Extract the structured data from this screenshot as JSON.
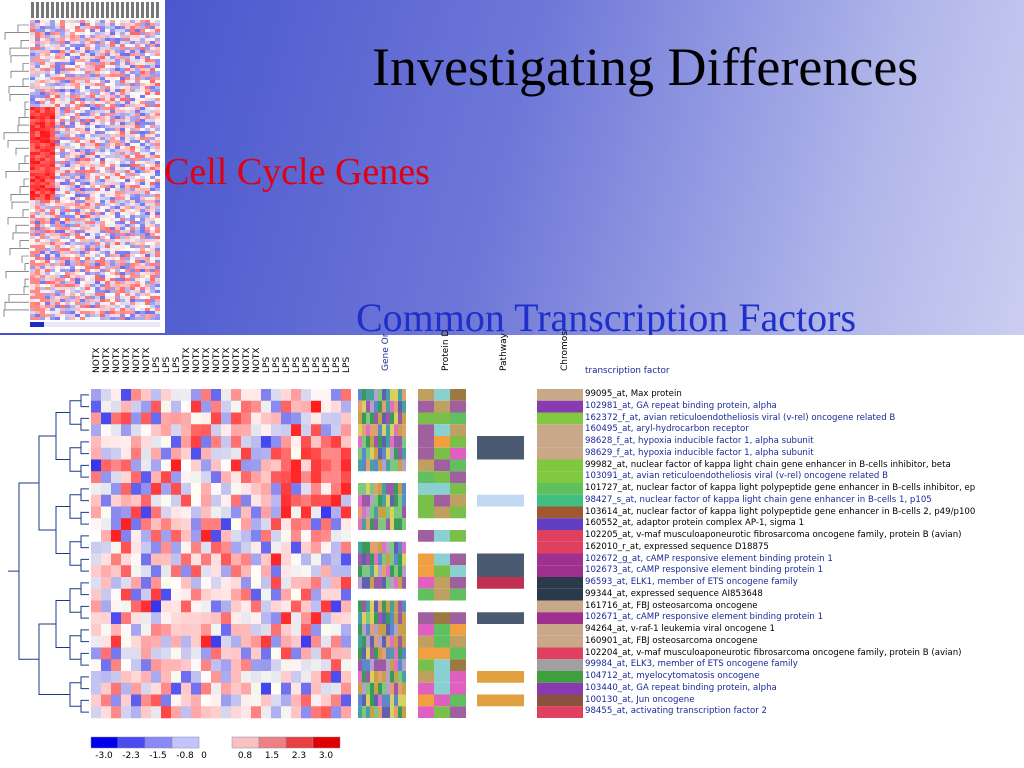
{
  "slide": {
    "title": "Investigating Differences",
    "cell_cycle_label": "Cell Cycle Genes",
    "tf_label": "Common Transcription Factors"
  },
  "heatmap": {
    "conditions": [
      "NOTX",
      "NOTX",
      "NOTX",
      "NOTX",
      "NOTX",
      "NOTX",
      "LPS",
      "LPS",
      "LPS",
      "NOTX",
      "NOTX",
      "NOTX",
      "NOTX",
      "NOTX",
      "NOTX",
      "NOTX",
      "NOTX",
      "LPS",
      "LPS",
      "LPS",
      "LPS",
      "LPS",
      "LPS",
      "LPS",
      "LPS",
      "LPS"
    ],
    "annotation_headers": [
      "Gene Or",
      "Protein D",
      "Pathway",
      "Chromos"
    ],
    "label_header": "transcription factor",
    "legend": {
      "values": [
        "-3.0",
        "-2.3",
        "-1.5",
        "-0.8",
        "0",
        "0.8",
        "1.5",
        "2.3",
        "3.0"
      ],
      "colors": [
        "#0000ee",
        "#4a4af0",
        "#8a8af6",
        "#c4c4fb",
        "#ffffff",
        "#f9c0c0",
        "#f08080",
        "#e84040",
        "#e00000"
      ]
    },
    "genes": [
      {
        "label": "99095_at, Max protein",
        "highlight": false
      },
      {
        "label": "102981_at, GA repeat binding protein, alpha",
        "highlight": true
      },
      {
        "label": "162372_f_at, avian reticuloendotheliosis viral (v-rel) oncogene related B",
        "highlight": true
      },
      {
        "label": "160495_at, aryl-hydrocarbon receptor",
        "highlight": true
      },
      {
        "label": "98628_f_at, hypoxia inducible factor 1, alpha subunit",
        "highlight": true
      },
      {
        "label": "98629_f_at, hypoxia inducible factor 1, alpha subunit",
        "highlight": true
      },
      {
        "label": "99982_at, nuclear factor of kappa light chain gene enhancer in B-cells inhibitor, beta",
        "highlight": false
      },
      {
        "label": "103091_at, avian reticuloendotheliosis viral (v-rel) oncogene related B",
        "highlight": true
      },
      {
        "label": "101727_at, nuclear factor of kappa light polypeptide gene enhancer in B-cells inhibitor, ep",
        "highlight": false
      },
      {
        "label": "98427_s_at, nuclear factor of kappa light chain gene enhancer in B-cells 1, p105",
        "highlight": true
      },
      {
        "label": "103614_at, nuclear factor of kappa light polypeptide gene enhancer in B-cells 2, p49/p100",
        "highlight": false
      },
      {
        "label": "160552_at, adaptor protein complex AP-1, sigma 1",
        "highlight": false
      },
      {
        "label": "102205_at, v-maf musculoaponeurotic fibrosarcoma oncogene family, protein B (avian)",
        "highlight": false
      },
      {
        "label": "162010_r_at, expressed sequence D18875",
        "highlight": false
      },
      {
        "label": "102672_g_at, cAMP responsive element binding protein 1",
        "highlight": true
      },
      {
        "label": "102673_at, cAMP responsive element binding protein 1",
        "highlight": true
      },
      {
        "label": "96593_at, ELK1, member of ETS oncogene family",
        "highlight": true
      },
      {
        "label": "99344_at, expressed sequence AI853648",
        "highlight": false
      },
      {
        "label": "161716_at, FBJ osteosarcoma oncogene",
        "highlight": false
      },
      {
        "label": "102671_at, cAMP responsive element binding protein 1",
        "highlight": true
      },
      {
        "label": "94264_at, v-raf-1 leukemia viral oncogene 1",
        "highlight": false
      },
      {
        "label": "160901_at, FBJ osteosarcoma oncogene",
        "highlight": false
      },
      {
        "label": "102204_at, v-maf musculoaponeurotic fibrosarcoma oncogene family, protein B (avian)",
        "highlight": false
      },
      {
        "label": "99984_at, ELK3, member of ETS oncogene family",
        "highlight": true
      },
      {
        "label": "104712_at, myelocytomatosis oncogene",
        "highlight": true
      },
      {
        "label": "103440_at, GA repeat binding protein, alpha",
        "highlight": true
      },
      {
        "label": "100130_at, Jun oncogene",
        "highlight": true
      },
      {
        "label": "98455_at, activating transcription factor 2",
        "highlight": true
      }
    ]
  },
  "colors": {
    "title": "#000000",
    "cell_cycle": "#e00010",
    "transcription_factors": "#1f2fc9",
    "highlight_label": "#1a2a9a"
  }
}
